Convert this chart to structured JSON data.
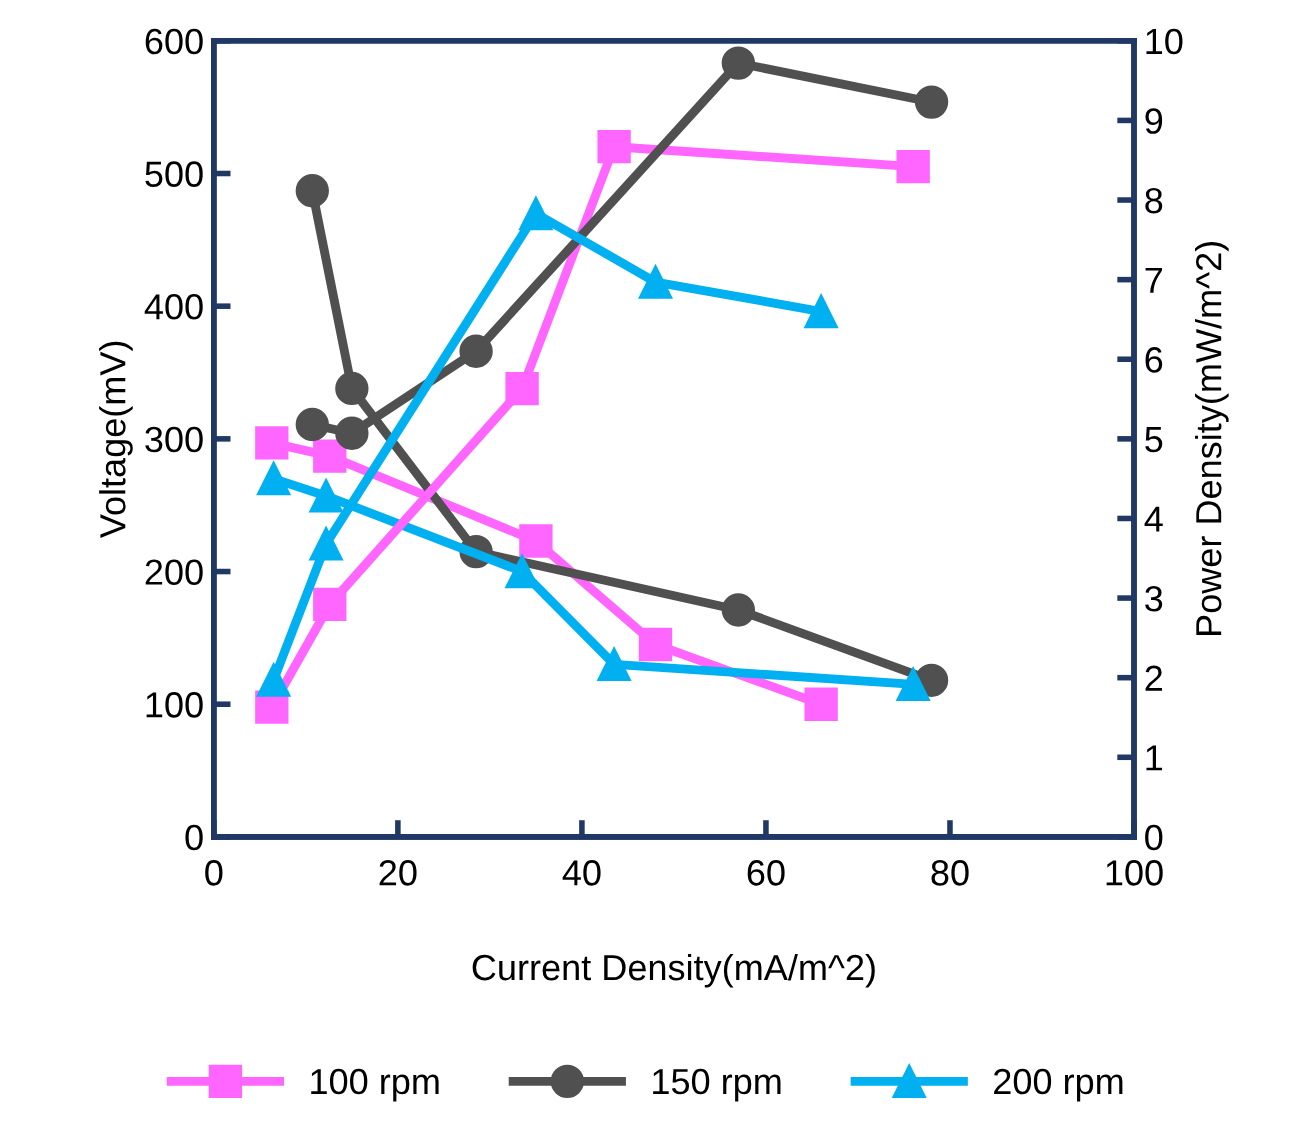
{
  "chart_data": {
    "type": "line",
    "xlabel": "Current Density(mA/m^2)",
    "ylabel": "Voltage(mV)",
    "y2label": "Power Density(mW/m^2)",
    "xlim": [
      0,
      100
    ],
    "xticks": [
      0,
      20,
      40,
      60,
      80,
      100
    ],
    "ylim": [
      0,
      600
    ],
    "yticks": [
      0,
      100,
      200,
      300,
      400,
      500,
      600
    ],
    "y2lim": [
      0,
      10
    ],
    "y2ticks": [
      0,
      1,
      2,
      3,
      4,
      5,
      6,
      7,
      8,
      9,
      10
    ],
    "grid": false,
    "legend": "bottom",
    "line_style": "solid",
    "series": [
      {
        "name": "100 rpm",
        "color": "#ff66ff",
        "marker": "square",
        "x": [
          6.3,
          12.6,
          35,
          48,
          66
        ],
        "values": [
          297,
          287,
          223,
          145,
          100
        ]
      },
      {
        "name": "150 rpm",
        "color": "#505050",
        "marker": "circle",
        "x": [
          10.7,
          15,
          28.5,
          57,
          78
        ],
        "values": [
          487,
          338,
          215,
          171,
          118
        ]
      },
      {
        "name": "200 rpm",
        "color": "#00b0f0",
        "marker": "triangle",
        "x": [
          6.5,
          12.2,
          33.5,
          43.5,
          76
        ],
        "values": [
          270,
          257,
          200,
          130,
          115
        ]
      },
      {
        "color": "#ff66ff",
        "marker": "square",
        "axis": "y2",
        "x": [
          6.3,
          12.6,
          33.5,
          43.5,
          76
        ],
        "values": [
          1.63,
          2.92,
          5.63,
          8.67,
          8.42
        ]
      },
      {
        "color": "#505050",
        "marker": "circle",
        "axis": "y2",
        "x": [
          10.7,
          15,
          28.5,
          57,
          78
        ],
        "values": [
          5.18,
          5.07,
          6.1,
          9.72,
          9.23
        ]
      },
      {
        "color": "#00b0f0",
        "marker": "triangle",
        "axis": "y2",
        "x": [
          6.5,
          12.2,
          35,
          48,
          66
        ],
        "values": [
          1.97,
          3.68,
          7.83,
          6.97,
          6.6
        ]
      }
    ]
  }
}
